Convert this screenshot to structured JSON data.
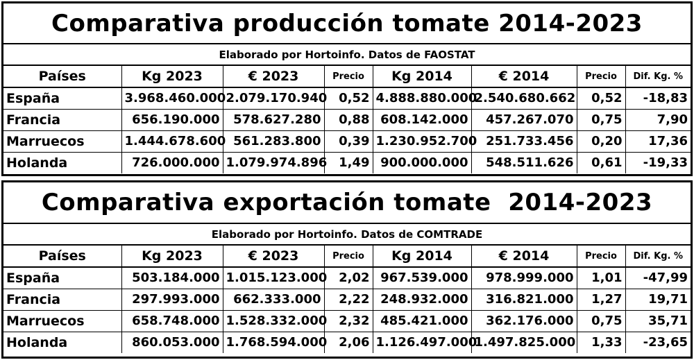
{
  "production": {
    "title": "Comparativa producción tomate 2014-2023",
    "subtitle": "Elaborado por Hortoinfo. Datos de FAOSTAT",
    "headers": [
      "Países",
      "Kg 2023",
      "€ 2023",
      "Precio",
      "Kg 2014",
      "€ 2014",
      "Precio",
      "Dif. Kg. %"
    ],
    "rows": [
      [
        "España",
        "3.968.460.000",
        "2.079.170.940",
        "0,52",
        "4.888.880.000",
        "2.540.680.662",
        "0,52",
        "-18,83"
      ],
      [
        "Francia",
        "656.190.000",
        "578.627.280",
        "0,88",
        "608.142.000",
        "457.267.070",
        "0,75",
        "7,90"
      ],
      [
        "Marruecos",
        "1.444.678.600",
        "561.283.800",
        "0,39",
        "1.230.952.700",
        "251.733.456",
        "0,20",
        "17,36"
      ],
      [
        "Holanda",
        "726.000.000",
        "1.079.974.896",
        "1,49",
        "900.000.000",
        "548.511.626",
        "0,61",
        "-19,33"
      ]
    ]
  },
  "export": {
    "title": "Comparativa exportación tomate  2014-2023",
    "subtitle": "Elaborado por Hortoinfo. Datos de COMTRADE",
    "headers": [
      "Países",
      "Kg 2023",
      "€ 2023",
      "Precio",
      "Kg 2014",
      "€ 2014",
      "Precio",
      "Dif. Kg. %"
    ],
    "rows": [
      [
        "España",
        "503.184.000",
        "1.015.123.000",
        "2,02",
        "967.539.000",
        "978.999.000",
        "1,01",
        "-47,99"
      ],
      [
        "Francia",
        "297.993.000",
        "662.333.000",
        "2,22",
        "248.932.000",
        "316.821.000",
        "1,27",
        "19,71"
      ],
      [
        "Marruecos",
        "658.748.000",
        "1.528.332.000",
        "2,32",
        "485.421.000",
        "362.176.000",
        "0,75",
        "35,71"
      ],
      [
        "Holanda",
        "860.053.000",
        "1.768.594.000",
        "2,06",
        "1.126.497.000",
        "1.497.825.000",
        "1,33",
        "-23,65"
      ]
    ]
  }
}
